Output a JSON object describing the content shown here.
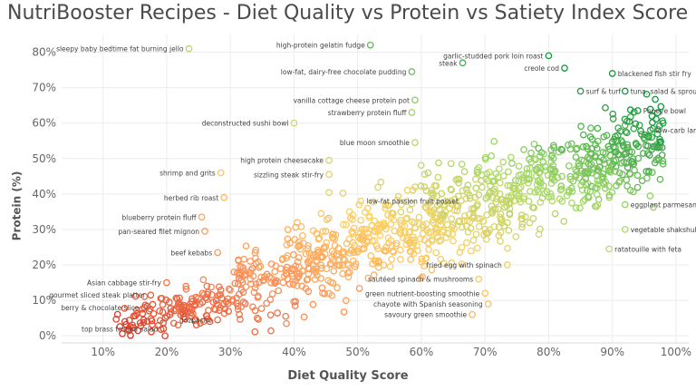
{
  "chart_data": {
    "type": "scatter",
    "title": "NutriBooster Recipes - Diet Quality vs Protein vs Satiety Index Score",
    "xlabel": "Diet Quality Score",
    "ylabel": "Protein (%)",
    "xlim": [
      0.035,
      1.02
    ],
    "ylim": [
      -0.02,
      0.85
    ],
    "x_ticks": [
      "10%",
      "20%",
      "30%",
      "40%",
      "50%",
      "60%",
      "70%",
      "80%",
      "90%",
      "100%"
    ],
    "x_tick_values": [
      0.1,
      0.2,
      0.3,
      0.4,
      0.5,
      0.6,
      0.7,
      0.8,
      0.9,
      1.0
    ],
    "y_ticks": [
      "0%",
      "10%",
      "20%",
      "30%",
      "40%",
      "50%",
      "60%",
      "70%",
      "80%"
    ],
    "y_tick_values": [
      0,
      0.1,
      0.2,
      0.3,
      0.4,
      0.5,
      0.6,
      0.7,
      0.8
    ],
    "grid": true,
    "color_encoding": "Satiety Index Score",
    "color_scale": [
      "#d7301f",
      "#fc8d59",
      "#fdd066",
      "#a6d96a",
      "#1a9641"
    ],
    "labeled_points": [
      {
        "label": "sleepy baby bedtime fat burning jello",
        "x": 0.235,
        "y": 0.81,
        "align": "end"
      },
      {
        "label": "high-protein gelatin fudge",
        "x": 0.52,
        "y": 0.82,
        "align": "end"
      },
      {
        "label": "low-fat, dairy-free chocolate pudding",
        "x": 0.585,
        "y": 0.745,
        "align": "end"
      },
      {
        "label": "steak",
        "x": 0.665,
        "y": 0.77,
        "align": "end"
      },
      {
        "label": "garlic-studded pork loin roast",
        "x": 0.8,
        "y": 0.79,
        "align": "end"
      },
      {
        "label": "creole cod",
        "x": 0.825,
        "y": 0.755,
        "align": "end"
      },
      {
        "label": "blackened fish stir fry",
        "x": 0.9,
        "y": 0.74,
        "align": "start"
      },
      {
        "label": "surf & turf",
        "x": 0.85,
        "y": 0.69,
        "align": "start"
      },
      {
        "label": "tuna, salad & sprouts",
        "x": 0.92,
        "y": 0.69,
        "align": "start"
      },
      {
        "label": "vanilla cottage cheese protein pot",
        "x": 0.59,
        "y": 0.665,
        "align": "end"
      },
      {
        "label": "Popeye bowl",
        "x": 0.94,
        "y": 0.635,
        "align": "start"
      },
      {
        "label": "strawberry protein fluff",
        "x": 0.585,
        "y": 0.63,
        "align": "end"
      },
      {
        "label": "low-carb larb",
        "x": 0.96,
        "y": 0.58,
        "align": "start"
      },
      {
        "label": "deconstructed sushi bowl",
        "x": 0.4,
        "y": 0.6,
        "align": "end"
      },
      {
        "label": "blue moon smoothie",
        "x": 0.59,
        "y": 0.545,
        "align": "end"
      },
      {
        "label": "high protein cheesecake",
        "x": 0.455,
        "y": 0.495,
        "align": "end"
      },
      {
        "label": "shrimp and grits",
        "x": 0.285,
        "y": 0.46,
        "align": "end"
      },
      {
        "label": "sizzling steak stir-fry",
        "x": 0.455,
        "y": 0.455,
        "align": "end"
      },
      {
        "label": "herbed rib roast",
        "x": 0.29,
        "y": 0.39,
        "align": "end"
      },
      {
        "label": "low-fat passion fruit posset",
        "x": 0.505,
        "y": 0.38,
        "align": "start"
      },
      {
        "label": "eggplant parmesan",
        "x": 0.92,
        "y": 0.37,
        "align": "start"
      },
      {
        "label": "blueberry protein fluff",
        "x": 0.255,
        "y": 0.335,
        "align": "end"
      },
      {
        "label": "pan-seared filet mignon",
        "x": 0.26,
        "y": 0.295,
        "align": "end"
      },
      {
        "label": "vegetable shakshuka",
        "x": 0.92,
        "y": 0.3,
        "align": "start"
      },
      {
        "label": "beef kebabs",
        "x": 0.28,
        "y": 0.235,
        "align": "end"
      },
      {
        "label": "ratatouille with feta",
        "x": 0.895,
        "y": 0.245,
        "align": "start"
      },
      {
        "label": "fried egg with spinach",
        "x": 0.735,
        "y": 0.2,
        "align": "end"
      },
      {
        "label": "Asian cabbage stir-fry",
        "x": 0.2,
        "y": 0.15,
        "align": "end"
      },
      {
        "label": "sautéed spinach & mushrooms",
        "x": 0.69,
        "y": 0.16,
        "align": "end"
      },
      {
        "label": "gourmet sliced steak platter",
        "x": 0.175,
        "y": 0.115,
        "align": "end"
      },
      {
        "label": "green nutrient-boosting smoothie",
        "x": 0.7,
        "y": 0.12,
        "align": "end"
      },
      {
        "label": "berry & chocolate slice",
        "x": 0.165,
        "y": 0.08,
        "align": "end"
      },
      {
        "label": "chayote with Spanish seasoning",
        "x": 0.705,
        "y": 0.09,
        "align": "end"
      },
      {
        "label": "gazpacho",
        "x": 0.28,
        "y": 0.045,
        "align": "end"
      },
      {
        "label": "savoury green smoothie",
        "x": 0.68,
        "y": 0.06,
        "align": "end"
      },
      {
        "label": "top brass tossed salad",
        "x": 0.195,
        "y": 0.02,
        "align": "end"
      }
    ]
  }
}
